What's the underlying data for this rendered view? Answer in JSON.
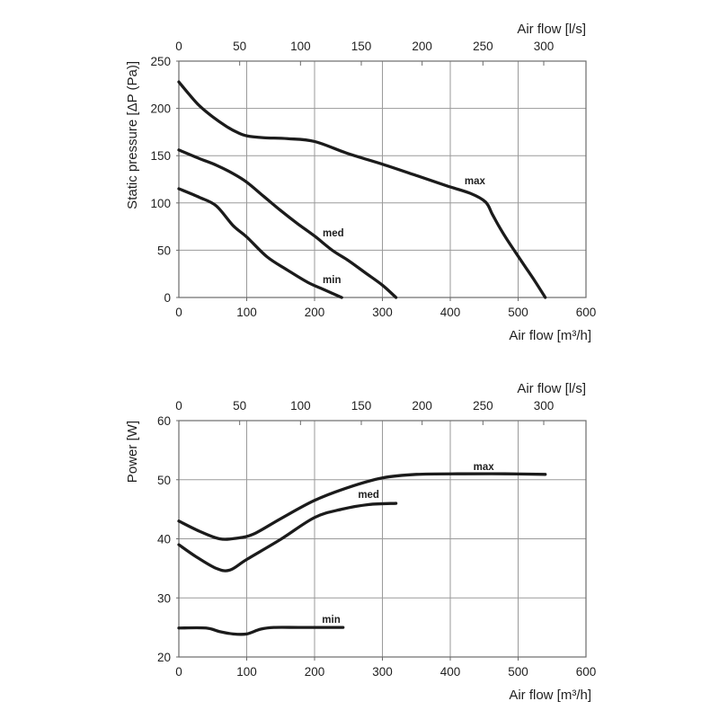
{
  "page": {
    "description": "Fan performance curves: static pressure and power versus air flow",
    "background": "#ffffff"
  },
  "style": {
    "curve_color": "#1b1b1b",
    "grid_color": "#9a9a9a",
    "border_color": "#6b6b6b",
    "text_color": "#1f1f1f"
  },
  "chart_data": [
    {
      "type": "line",
      "name": "static-pressure-vs-airflow",
      "grid": true,
      "legend_position": "inline-labels",
      "y_axis": {
        "label": "Static pressure [ΔP (Pa)]",
        "min": 0,
        "max": 250,
        "ticks": [
          0,
          50,
          100,
          150,
          200,
          250
        ]
      },
      "x_axis_bottom": {
        "label": "Air flow [m³/h]",
        "min": 0,
        "max": 600,
        "ticks": [
          0,
          100,
          200,
          300,
          400,
          500,
          600
        ]
      },
      "x_axis_top": {
        "label": "Air flow [l/s]",
        "min": 0,
        "max": 300,
        "ticks": [
          0,
          50,
          100,
          150,
          200,
          250,
          300
        ]
      },
      "series": [
        {
          "name": "max",
          "points": [
            [
              0,
              228
            ],
            [
              15,
              215
            ],
            [
              30,
              203
            ],
            [
              50,
              191
            ],
            [
              70,
              181
            ],
            [
              85,
              175
            ],
            [
              100,
              171
            ],
            [
              125,
              169
            ],
            [
              160,
              168
            ],
            [
              200,
              165
            ],
            [
              250,
              152
            ],
            [
              300,
              141
            ],
            [
              350,
              129
            ],
            [
              395,
              118
            ],
            [
              430,
              110
            ],
            [
              452,
              101
            ],
            [
              462,
              88
            ],
            [
              472,
              75
            ],
            [
              483,
              62
            ],
            [
              495,
              49
            ],
            [
              510,
              33
            ],
            [
              525,
              17
            ],
            [
              540,
              0
            ]
          ],
          "label_at": [
            421,
            120
          ]
        },
        {
          "name": "med",
          "points": [
            [
              0,
              156
            ],
            [
              30,
              147
            ],
            [
              55,
              140
            ],
            [
              80,
              131
            ],
            [
              100,
              122
            ],
            [
              125,
              107
            ],
            [
              150,
              92
            ],
            [
              175,
              78
            ],
            [
              200,
              65
            ],
            [
              226,
              50
            ],
            [
              250,
              39
            ],
            [
              275,
              26
            ],
            [
              300,
              13
            ],
            [
              320,
              0
            ]
          ],
          "label_at": [
            212,
            64.5
          ]
        },
        {
          "name": "min",
          "points": [
            [
              0,
              115
            ],
            [
              30,
              106
            ],
            [
              55,
              97
            ],
            [
              80,
              76
            ],
            [
              100,
              64
            ],
            [
              130,
              43
            ],
            [
              160,
              29
            ],
            [
              190,
              16
            ],
            [
              215,
              8
            ],
            [
              240,
              0
            ]
          ],
          "label_at": [
            212,
            15
          ]
        }
      ]
    },
    {
      "type": "line",
      "name": "power-vs-airflow",
      "grid": true,
      "legend_position": "inline-labels",
      "y_axis": {
        "label": "Power [W]",
        "min": 20,
        "max": 60,
        "ticks": [
          20,
          30,
          40,
          50,
          60
        ]
      },
      "x_axis_bottom": {
        "label": "Air flow [m³/h]",
        "min": 0,
        "max": 600,
        "ticks": [
          0,
          100,
          200,
          300,
          400,
          500,
          600
        ]
      },
      "x_axis_top": {
        "label": "Air flow [l/s]",
        "min": 0,
        "max": 300,
        "ticks": [
          0,
          50,
          100,
          150,
          200,
          250,
          300
        ]
      },
      "series": [
        {
          "name": "max",
          "points": [
            [
              0,
              43
            ],
            [
              30,
              41.3
            ],
            [
              60,
              40
            ],
            [
              85,
              40.1
            ],
            [
              110,
              40.8
            ],
            [
              150,
              43.4
            ],
            [
              200,
              46.5
            ],
            [
              250,
              48.7
            ],
            [
              300,
              50.3
            ],
            [
              350,
              50.9
            ],
            [
              420,
              51
            ],
            [
              480,
              51
            ],
            [
              540,
              50.9
            ]
          ],
          "label_at": [
            434,
            51.6
          ]
        },
        {
          "name": "med",
          "points": [
            [
              0,
              39
            ],
            [
              25,
              37
            ],
            [
              55,
              35
            ],
            [
              75,
              34.7
            ],
            [
              100,
              36.5
            ],
            [
              150,
              39.9
            ],
            [
              200,
              43.6
            ],
            [
              240,
              45
            ],
            [
              280,
              45.8
            ],
            [
              320,
              46
            ]
          ],
          "label_at": [
            264,
            46.9
          ]
        },
        {
          "name": "min",
          "points": [
            [
              0,
              24.9
            ],
            [
              40,
              24.9
            ],
            [
              60,
              24.3
            ],
            [
              80,
              23.9
            ],
            [
              100,
              23.9
            ],
            [
              120,
              24.7
            ],
            [
              140,
              25
            ],
            [
              180,
              25
            ],
            [
              242,
              25
            ]
          ],
          "label_at": [
            211,
            25.8
          ]
        }
      ]
    }
  ]
}
